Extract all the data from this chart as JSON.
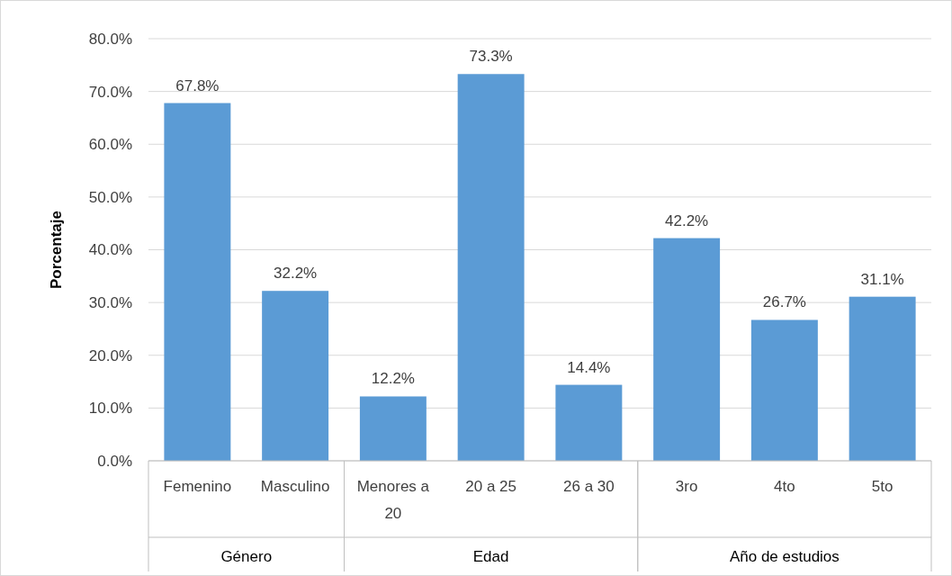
{
  "chart_data": {
    "type": "bar",
    "ylabel": "Porcentaje",
    "categories": [
      "Femenino",
      "Masculino",
      "Menores a 20",
      "20 a 25",
      "26 a 30",
      "3ro",
      "4to",
      "5to"
    ],
    "values": [
      67.8,
      32.2,
      12.2,
      73.3,
      14.4,
      42.2,
      26.7,
      31.1
    ],
    "value_labels": [
      "67.8%",
      "32.2%",
      "12.2%",
      "73.3%",
      "14.4%",
      "42.2%",
      "26.7%",
      "31.1%"
    ],
    "color": "#5b9bd5",
    "ylim": [
      0,
      80
    ],
    "yticks": [
      {
        "value": 0,
        "label": "0.0%"
      },
      {
        "value": 10,
        "label": "10.0%"
      },
      {
        "value": 20,
        "label": "20.0%"
      },
      {
        "value": 30,
        "label": "30.0%"
      },
      {
        "value": 40,
        "label": "40.0%"
      },
      {
        "value": 50,
        "label": "50.0%"
      },
      {
        "value": 60,
        "label": "60.0%"
      },
      {
        "value": 70,
        "label": "70.0%"
      },
      {
        "value": 80,
        "label": "80.0%"
      }
    ],
    "grid": "y",
    "annotations": [
      "Género",
      "Edad",
      "Año de estudios"
    ]
  }
}
